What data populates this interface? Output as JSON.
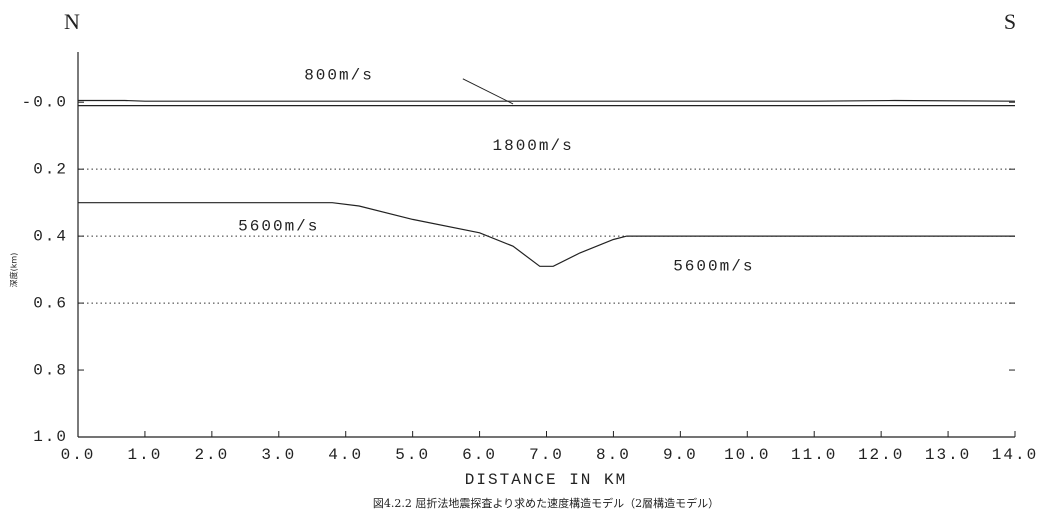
{
  "chart_data": {
    "type": "line",
    "corner_labels": [
      "N",
      "S"
    ],
    "ylabel": "深度(km)",
    "xlabel": "DISTANCE IN KM",
    "caption": "図4.2.2 屈折法地震探査より求めた速度構造モデル（2層構造モデル）",
    "annotations": [
      "800m/s",
      "1800m/s",
      "5600m/s",
      "5600m/s"
    ],
    "xlim": [
      0,
      14
    ],
    "ylim": [
      -0.15,
      1.0
    ],
    "xticks": [
      {
        "value": 0,
        "label": "0.0"
      },
      {
        "value": 1,
        "label": "1.0"
      },
      {
        "value": 2,
        "label": "2.0"
      },
      {
        "value": 3,
        "label": "3.0"
      },
      {
        "value": 4,
        "label": "4.0"
      },
      {
        "value": 5,
        "label": "5.0"
      },
      {
        "value": 6,
        "label": "6.0"
      },
      {
        "value": 7,
        "label": "7.0"
      },
      {
        "value": 8,
        "label": "8.0"
      },
      {
        "value": 9,
        "label": "9.0"
      },
      {
        "value": 10,
        "label": "10.0"
      },
      {
        "value": 11,
        "label": "11.0"
      },
      {
        "value": 12,
        "label": "12.0"
      },
      {
        "value": 13,
        "label": "13.0"
      },
      {
        "value": 14,
        "label": "14.0"
      }
    ],
    "yticks": [
      {
        "value": 0,
        "label": "-0.0"
      },
      0.2,
      0.4,
      0.6,
      0.8,
      {
        "value": 1,
        "label": "1.0"
      }
    ],
    "grid_lines": [
      0.2,
      0.4,
      0.6
    ],
    "series": [
      {
        "color": "#222222",
        "x": [
          0,
          0.7,
          1.0,
          3.0,
          6.5,
          11.0,
          12.2,
          14
        ],
        "values": [
          -0.005,
          -0.005,
          -0.003,
          -0.003,
          -0.003,
          -0.003,
          -0.005,
          -0.003
        ]
      },
      {
        "color": "#222222",
        "x": [
          0,
          14
        ],
        "values": [
          0.01,
          0.01
        ]
      },
      {
        "color": "#222222",
        "x": [
          0,
          3.8,
          4.2,
          5.0,
          6.0,
          6.5,
          6.9,
          7.1,
          7.5,
          8.0,
          8.2,
          14
        ],
        "values": [
          0.3,
          0.3,
          0.31,
          0.35,
          0.39,
          0.43,
          0.49,
          0.49,
          0.45,
          0.41,
          0.4,
          0.4
        ]
      }
    ]
  }
}
